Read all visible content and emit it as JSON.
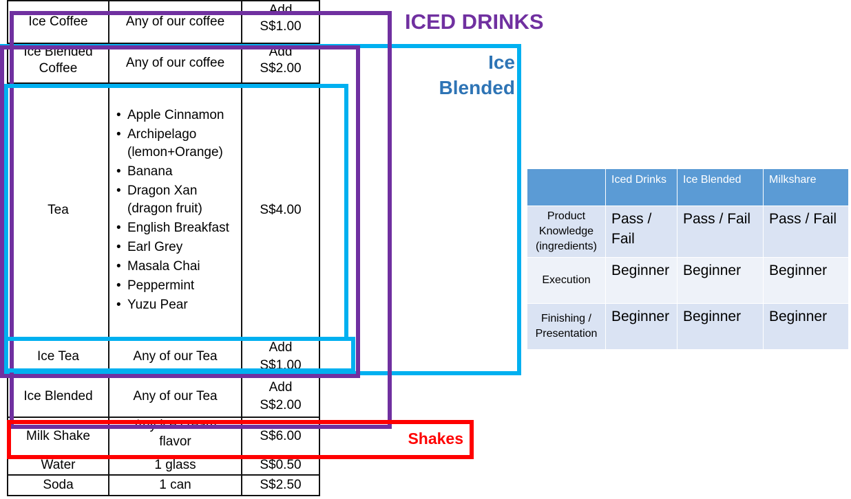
{
  "menu": {
    "rows": [
      {
        "item": "Ice Coffee",
        "desc": "Any of our coffee",
        "price_top": "Add",
        "price": "S$1.00"
      },
      {
        "item_top": "Ice Blended",
        "item": "Coffee",
        "desc": "Any of our coffee",
        "price_top": "Add",
        "price": "S$2.00"
      },
      {
        "item": "Tea",
        "teas": [
          "Apple Cinnamon",
          "Archipelago (lemon+Orange)",
          "Banana",
          "Dragon Xan (dragon fruit)",
          "English Breakfast",
          "Earl Grey",
          "Masala Chai",
          "Peppermint",
          "Yuzu Pear"
        ],
        "price": "S$4.00"
      },
      {
        "item": "Ice Tea",
        "desc": "Any of our Tea",
        "price_top": "Add",
        "price": "S$1.00"
      },
      {
        "item": "Ice Blended",
        "desc": "Any of our Tea",
        "price_top": "Add",
        "price": "S$2.00"
      },
      {
        "item": "Milk Shake",
        "desc_top": "Any ice cream",
        "desc": "flavor",
        "price": "S$6.00"
      },
      {
        "item": "Water",
        "desc": "1 glass",
        "price": "S$0.50"
      },
      {
        "item": "Soda",
        "desc": "1 can",
        "price": "S$2.50"
      }
    ]
  },
  "labels": {
    "iced_drinks": "ICED DRINKS",
    "ice_blended_line1": "Ice",
    "ice_blended_line2": "Blended",
    "shakes": "Shakes"
  },
  "colors": {
    "iced_drinks": "#7030a0",
    "ice_blended": "#00b0f0",
    "ice_blended_text": "#2e74b5",
    "shakes": "#ff0000",
    "table_header": "#5b9bd5",
    "table_row": "#dae3f3"
  },
  "assessment": {
    "headers": [
      "",
      "Iced Drinks",
      "Ice Blended",
      "Milkshare"
    ],
    "rows": [
      {
        "label": "Product Knowledge (ingredients)",
        "values": [
          "Pass / Fail",
          "Pass / Fail",
          "Pass / Fail"
        ]
      },
      {
        "label": "Execution",
        "values": [
          "Beginner",
          "Beginner",
          "Beginner"
        ]
      },
      {
        "label": "Finishing / Presentation",
        "values": [
          "Beginner",
          "Beginner",
          "Beginner"
        ]
      }
    ]
  }
}
